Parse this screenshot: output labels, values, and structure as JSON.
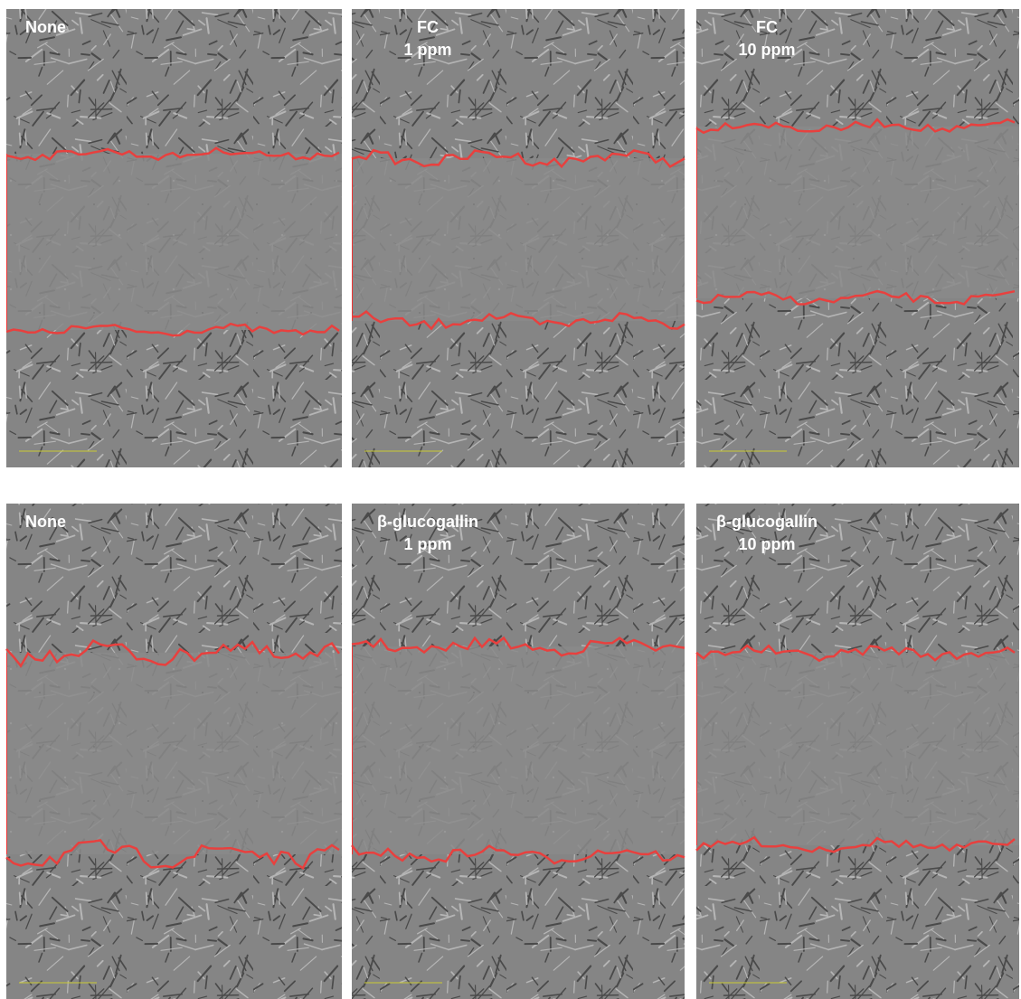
{
  "panels": [
    {
      "label_lines": [
        "None"
      ]
    },
    {
      "label_lines": [
        "FC",
        "1 ppm"
      ]
    },
    {
      "label_lines": [
        "FC",
        "10 ppm"
      ]
    },
    {
      "label_lines": [
        "None"
      ]
    },
    {
      "label_lines": [
        "β-glucogallin",
        "1 ppm"
      ]
    },
    {
      "label_lines": [
        "β-glucogallin",
        "10 ppm"
      ]
    }
  ]
}
